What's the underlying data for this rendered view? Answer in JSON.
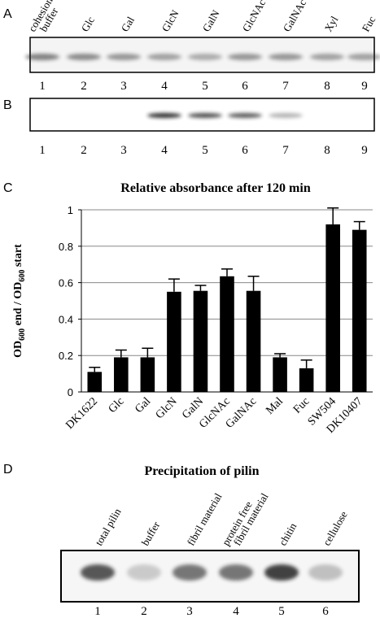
{
  "panel_a": {
    "letter": "A",
    "lanes": [
      [
        "cohesion",
        "buffer"
      ],
      [
        "Glc"
      ],
      [
        "Gal"
      ],
      [
        "GlcN"
      ],
      [
        "GalN"
      ],
      [
        "GlcNAc"
      ],
      [
        "GalNAc"
      ],
      [
        "Xyl"
      ],
      [
        "Fuc"
      ]
    ],
    "numbers": [
      1,
      2,
      3,
      4,
      5,
      6,
      7,
      8,
      9
    ]
  },
  "panel_b": {
    "letter": "B",
    "numbers": [
      1,
      2,
      3,
      4,
      5,
      6,
      7,
      8,
      9
    ]
  },
  "panel_c": {
    "letter": "C"
  },
  "chart_data": {
    "type": "bar",
    "title": "Relative absorbance after 120 min",
    "ylabel": [
      "OD",
      "600",
      " end / OD",
      "600",
      " start"
    ],
    "categories": [
      "DK1622",
      "Glc",
      "Gal",
      "GlcN",
      "GalN",
      "GlcNAc",
      "GalNAc",
      "Mal",
      "Fuc",
      "SW504",
      "DK10407"
    ],
    "values": [
      0.11,
      0.19,
      0.19,
      0.55,
      0.555,
      0.635,
      0.555,
      0.19,
      0.13,
      0.92,
      0.89
    ],
    "errors": [
      0.025,
      0.04,
      0.05,
      0.07,
      0.03,
      0.04,
      0.08,
      0.02,
      0.045,
      0.09,
      0.045
    ],
    "color": "#000000",
    "ylim": [
      0,
      1
    ],
    "yticks": [
      0,
      0.2,
      0.4,
      0.6,
      0.8,
      1
    ],
    "grid": true
  },
  "panel_d": {
    "letter": "D",
    "title": "Precipitation of pilin",
    "lanes": [
      [
        "total pilin"
      ],
      [
        "buffer"
      ],
      [
        "fibril material"
      ],
      [
        "protein free",
        "fibril material"
      ],
      [
        "chitin"
      ],
      [
        "cellulose"
      ]
    ],
    "numbers": [
      1,
      2,
      3,
      4,
      5,
      6
    ]
  }
}
